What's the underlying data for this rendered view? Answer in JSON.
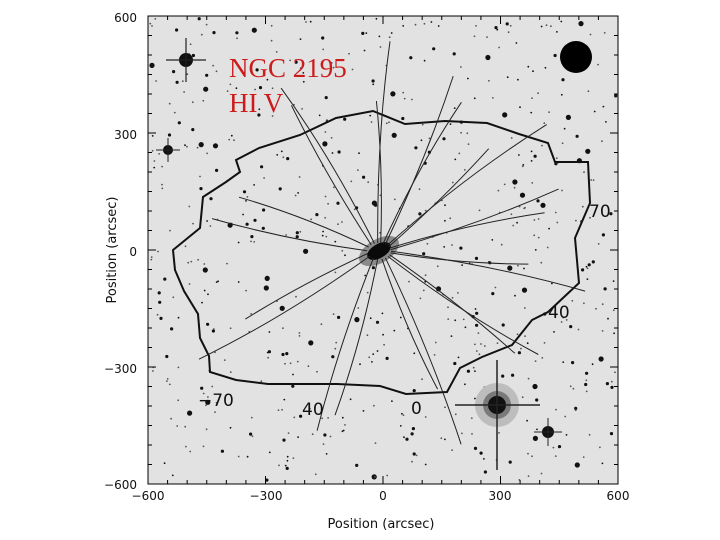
{
  "figure": {
    "galaxy_name": "NGC 2195",
    "map_label": "HI V",
    "x_axis_label": "Position (arcsec)",
    "y_axis_label": "Position (arcsec)",
    "x_ticks": [
      "−600",
      "−300",
      "0",
      "300",
      "600"
    ],
    "y_ticks": [
      "600",
      "300",
      "0",
      "−300",
      "−600"
    ],
    "contour_labels": [
      "70",
      "40",
      "−70",
      "40",
      "0"
    ],
    "colors": {
      "label": "#cc1b1b",
      "contour": "#111111",
      "background_image": "#e4e4e4"
    }
  }
}
